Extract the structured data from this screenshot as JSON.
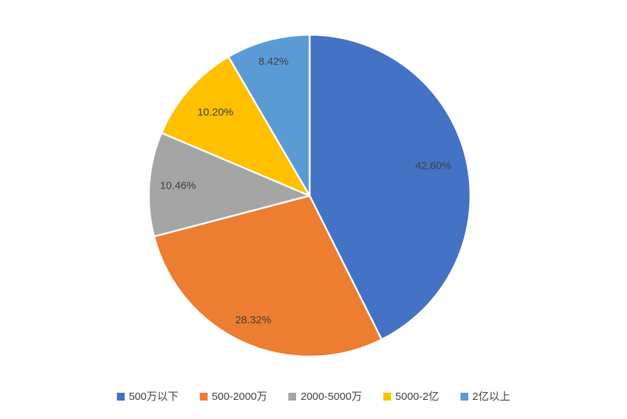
{
  "chart_data": {
    "type": "pie",
    "title": "",
    "start_angle_deg": 0,
    "direction": "clockwise",
    "legend_position": "bottom",
    "label_color": "#404040",
    "slice_border_color": "#FFFFFF",
    "background_color": "#FFFFFF",
    "categories": [
      "500万以下",
      "500-2000万",
      "2000-5000万",
      "5000-2亿",
      "2亿以上"
    ],
    "values": [
      42.6,
      28.32,
      10.46,
      10.2,
      8.42
    ],
    "slices": [
      {
        "name": "500万以下",
        "value": 42.6,
        "label": "42.60%",
        "color": "#4472C4"
      },
      {
        "name": "500-2000万",
        "value": 28.32,
        "label": "28.32%",
        "color": "#ED7D31"
      },
      {
        "name": "2000-5000万",
        "value": 10.46,
        "label": "10.46%",
        "color": "#A5A5A5"
      },
      {
        "name": "5000-2亿",
        "value": 10.2,
        "label": "10.20%",
        "color": "#FFC000"
      },
      {
        "name": "2亿以上",
        "value": 8.42,
        "label": "8.42%",
        "color": "#5B9BD5"
      }
    ]
  }
}
